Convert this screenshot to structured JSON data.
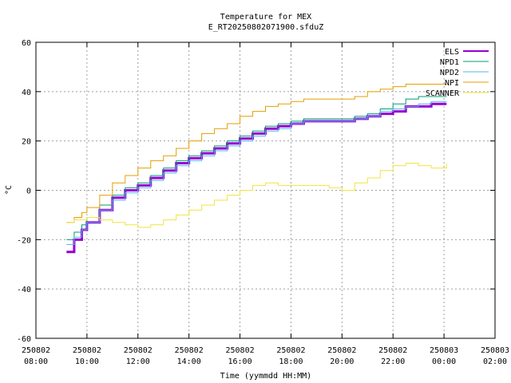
{
  "chart_data": {
    "type": "line",
    "title": "Temperature for MEX",
    "subtitle": "E_RT20250802071900.sfduZ",
    "xlabel": "Time (yymmdd HH:MM)",
    "ylabel": "°C",
    "ylim": [
      -60,
      60
    ],
    "xlim": [
      8,
      26
    ],
    "yticks": [
      -60,
      -40,
      -20,
      0,
      20,
      40,
      60
    ],
    "xticks": [
      {
        "x": 8,
        "date": "250802",
        "time": "08:00"
      },
      {
        "x": 10,
        "date": "250802",
        "time": "10:00"
      },
      {
        "x": 12,
        "date": "250802",
        "time": "12:00"
      },
      {
        "x": 14,
        "date": "250802",
        "time": "14:00"
      },
      {
        "x": 16,
        "date": "250802",
        "time": "16:00"
      },
      {
        "x": 18,
        "date": "250802",
        "time": "18:00"
      },
      {
        "x": 20,
        "date": "250802",
        "time": "20:00"
      },
      {
        "x": 22,
        "date": "250802",
        "time": "22:00"
      },
      {
        "x": 24,
        "date": "250803",
        "time": "00:00"
      },
      {
        "x": 26,
        "date": "250803",
        "time": "02:00"
      }
    ],
    "grid": true,
    "legend": "top-right",
    "series": [
      {
        "name": "ELS",
        "color": "#9400d3",
        "width": 3,
        "x": [
          9.2,
          9.5,
          9.8,
          10.0,
          10.5,
          11.0,
          11.5,
          12.0,
          12.5,
          13.0,
          13.5,
          14.0,
          14.5,
          15.0,
          15.5,
          16.0,
          16.5,
          17.0,
          17.5,
          18.0,
          18.5,
          19.0,
          19.5,
          20.0,
          20.5,
          21.0,
          21.5,
          22.0,
          22.5,
          23.0,
          23.5,
          24.1
        ],
        "y": [
          -25,
          -20,
          -16,
          -13,
          -8,
          -3,
          0,
          2,
          5,
          8,
          11,
          13,
          15,
          17,
          19,
          21,
          23,
          25,
          26,
          27,
          28,
          28,
          28,
          28,
          29,
          30,
          31,
          32,
          34,
          34,
          35,
          35
        ]
      },
      {
        "name": "NPD1",
        "color": "#009e73",
        "width": 1,
        "x": [
          9.2,
          9.5,
          9.8,
          10.0,
          10.5,
          11.0,
          11.5,
          12.0,
          12.5,
          13.0,
          13.5,
          14.0,
          14.5,
          15.0,
          15.5,
          16.0,
          16.5,
          17.0,
          17.5,
          18.0,
          18.5,
          19.0,
          19.5,
          20.0,
          20.5,
          21.0,
          21.5,
          22.0,
          22.5,
          23.0,
          23.5,
          24.1
        ],
        "y": [
          -20,
          -17,
          -14,
          -11,
          -6,
          -2,
          1,
          3,
          6,
          9,
          12,
          14,
          16,
          18,
          20,
          22,
          24,
          26,
          27,
          28,
          29,
          29,
          29,
          29,
          30,
          31,
          33,
          35,
          37,
          38,
          38,
          38
        ]
      },
      {
        "name": "NPD2",
        "color": "#56b4e9",
        "width": 1,
        "x": [
          9.2,
          9.5,
          9.8,
          10.0,
          10.5,
          11.0,
          11.5,
          12.0,
          12.5,
          13.0,
          13.5,
          14.0,
          14.5,
          15.0,
          15.5,
          16.0,
          16.5,
          17.0,
          17.5,
          18.0,
          18.5,
          19.0,
          19.5,
          20.0,
          20.5,
          21.0,
          21.5,
          22.0,
          22.5,
          23.0,
          23.5,
          24.1
        ],
        "y": [
          -22,
          -19,
          -16,
          -13,
          -8,
          -4,
          -1,
          1,
          4,
          7,
          10,
          12,
          14,
          16,
          18,
          20,
          22,
          24,
          25,
          27,
          28,
          28,
          28,
          28,
          29,
          30,
          32,
          33,
          34,
          35,
          36,
          36
        ]
      },
      {
        "name": "NPI",
        "color": "#e69f00",
        "width": 1,
        "x": [
          9.2,
          9.5,
          9.8,
          10.0,
          10.5,
          11.0,
          11.5,
          12.0,
          12.5,
          13.0,
          13.5,
          14.0,
          14.5,
          15.0,
          15.5,
          16.0,
          16.5,
          17.0,
          17.5,
          18.0,
          18.5,
          19.0,
          19.5,
          20.0,
          20.5,
          21.0,
          21.5,
          22.0,
          22.5,
          23.0,
          23.5,
          24.1
        ],
        "y": [
          -13,
          -11,
          -9,
          -7,
          -2,
          3,
          6,
          9,
          12,
          14,
          17,
          20,
          23,
          25,
          27,
          30,
          32,
          34,
          35,
          36,
          37,
          37,
          37,
          37,
          38,
          40,
          41,
          42,
          43,
          43,
          43,
          43
        ]
      },
      {
        "name": "SCANNER",
        "color": "#f0e442",
        "width": 1,
        "x": [
          9.2,
          9.5,
          10.0,
          10.5,
          11.0,
          11.5,
          12.0,
          12.5,
          13.0,
          13.5,
          14.0,
          14.5,
          15.0,
          15.5,
          16.0,
          16.5,
          17.0,
          17.5,
          18.0,
          18.5,
          19.0,
          19.5,
          20.0,
          20.5,
          21.0,
          21.5,
          22.0,
          22.5,
          23.0,
          23.5,
          24.1
        ],
        "y": [
          -13,
          -12,
          -11,
          -12,
          -13,
          -14,
          -15,
          -14,
          -12,
          -10,
          -8,
          -6,
          -4,
          -2,
          0,
          2,
          3,
          2,
          2,
          2,
          2,
          1,
          0,
          3,
          5,
          8,
          10,
          11,
          10,
          9,
          11
        ]
      }
    ]
  }
}
